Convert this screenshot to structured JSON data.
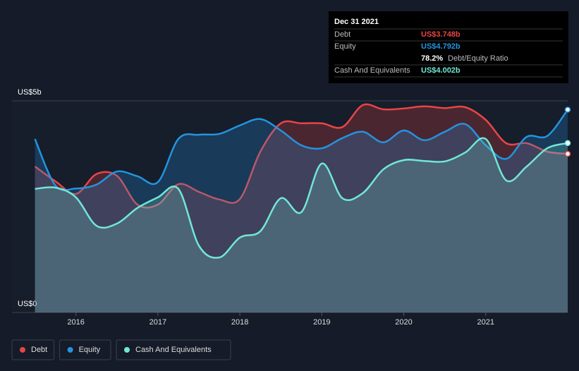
{
  "chart_data": {
    "type": "line",
    "x": [
      2015.5,
      2015.75,
      2016,
      2016.25,
      2016.5,
      2016.75,
      2017,
      2017.25,
      2017.5,
      2017.75,
      2018,
      2018.25,
      2018.5,
      2018.75,
      2019,
      2019.25,
      2019.5,
      2019.75,
      2020,
      2020.25,
      2020.5,
      2020.75,
      2021,
      2021.25,
      2021.5,
      2021.75,
      2022
    ],
    "series": [
      {
        "name": "Debt",
        "color": "#e84545",
        "values": [
          3.45,
          3.1,
          2.8,
          3.27,
          3.23,
          2.55,
          2.55,
          3.03,
          2.85,
          2.67,
          2.68,
          3.8,
          4.47,
          4.47,
          4.47,
          4.38,
          4.9,
          4.8,
          4.82,
          4.87,
          4.83,
          4.85,
          4.55,
          4.0,
          4.0,
          3.8,
          3.748
        ]
      },
      {
        "name": "Equity",
        "color": "#2394df",
        "values": [
          4.1,
          3.0,
          2.93,
          3.02,
          3.33,
          3.22,
          3.08,
          4.1,
          4.2,
          4.22,
          4.42,
          4.57,
          4.3,
          3.95,
          3.88,
          4.12,
          4.27,
          4.02,
          4.3,
          4.07,
          4.27,
          4.45,
          3.95,
          3.63,
          4.15,
          4.17,
          4.792
        ]
      },
      {
        "name": "Cash And Equivalents",
        "color": "#71e7d6",
        "values": [
          2.92,
          2.95,
          2.72,
          2.05,
          2.1,
          2.47,
          2.72,
          2.92,
          1.58,
          1.3,
          1.77,
          1.92,
          2.7,
          2.37,
          3.52,
          2.7,
          2.82,
          3.38,
          3.6,
          3.58,
          3.57,
          3.78,
          4.1,
          3.12,
          3.45,
          3.88,
          4.002
        ]
      }
    ],
    "xlim": [
      2015.22,
      2022.0
    ],
    "xticks": [
      2016,
      2017,
      2018,
      2019,
      2020,
      2021
    ],
    "ylim": [
      0,
      5
    ],
    "yticks": [
      {
        "value": 0,
        "label": "US$0"
      },
      {
        "value": 5,
        "label": "US$5b"
      }
    ],
    "tooltip": {
      "date": "Dec 31 2021",
      "rows": [
        {
          "label": "Debt",
          "value": "US$3.748b"
        },
        {
          "label": "Equity",
          "value": "US$4.792b"
        }
      ],
      "ratio": "78.2%",
      "ratio_label": "Debt/Equity Ratio",
      "cash_label": "Cash And Equivalents",
      "cash_value": "US$4.002b"
    }
  }
}
